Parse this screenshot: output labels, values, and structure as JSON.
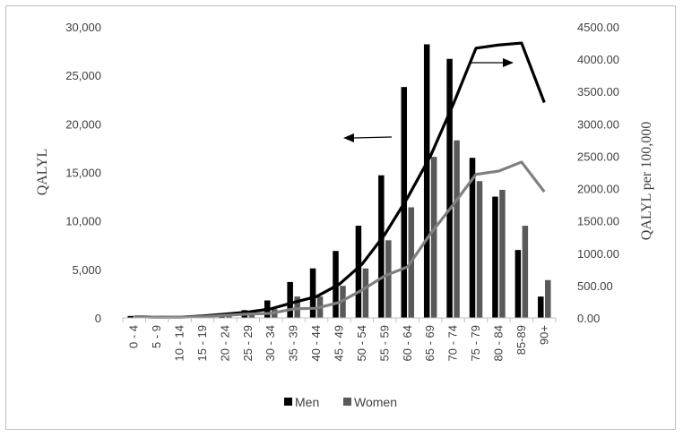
{
  "chart_data": {
    "type": "bar",
    "categories": [
      "0 - 4",
      "5 - 9",
      "10 - 14",
      "15 - 19",
      "20 - 24",
      "25 - 29",
      "30 - 34",
      "35 - 39",
      "40 - 44",
      "45 - 49",
      "50 - 54",
      "55 - 59",
      "60 - 64",
      "65 - 69",
      "70 - 74",
      "75 - 79",
      "80 - 84",
      "85-89",
      "90+"
    ],
    "ylabel": "QALYL",
    "y2label": "QALYL per 100,000",
    "ylim": [
      0,
      30000
    ],
    "y2lim": [
      0,
      4500
    ],
    "yticks": [
      "0",
      "5,000",
      "10,000",
      "15,000",
      "20,000",
      "25,000",
      "30,000"
    ],
    "y2ticks": [
      "0.00",
      "500.00",
      "1000.00",
      "1500.00",
      "2000.00",
      "2500.00",
      "3000.00",
      "3500.00",
      "4000.00",
      "4500.00"
    ],
    "series": [
      {
        "name": "Men",
        "kind": "bar",
        "axis": "left",
        "color": "#000000",
        "values": [
          200,
          100,
          100,
          300,
          400,
          800,
          1800,
          3700,
          5100,
          6900,
          9500,
          14700,
          23800,
          28200,
          26700,
          16500,
          12500,
          7000,
          2200
        ]
      },
      {
        "name": "Women",
        "kind": "bar",
        "axis": "left",
        "color": "#595959",
        "values": [
          200,
          100,
          100,
          300,
          400,
          700,
          900,
          2200,
          2200,
          3300,
          5100,
          8000,
          11400,
          16600,
          18300,
          14100,
          13200,
          9500,
          3900
        ]
      },
      {
        "kind": "line",
        "axis": "right",
        "color": "#000000",
        "values": [
          20,
          10,
          10,
          30,
          60,
          90,
          140,
          240,
          330,
          520,
          830,
          1290,
          1860,
          2500,
          3300,
          4170,
          4220,
          4250,
          3330
        ]
      },
      {
        "kind": "line",
        "axis": "right",
        "color": "#7f7f7f",
        "values": [
          20,
          10,
          10,
          20,
          40,
          60,
          70,
          140,
          150,
          240,
          430,
          650,
          790,
          1300,
          1750,
          2220,
          2270,
          2410,
          1950
        ]
      }
    ],
    "legend": {
      "position": "bottom"
    },
    "annotations": [
      {
        "type": "arrow",
        "direction": "left",
        "meaning": "bars read on left axis"
      },
      {
        "type": "arrow",
        "direction": "right",
        "meaning": "lines read on right axis"
      }
    ],
    "grid": false
  }
}
